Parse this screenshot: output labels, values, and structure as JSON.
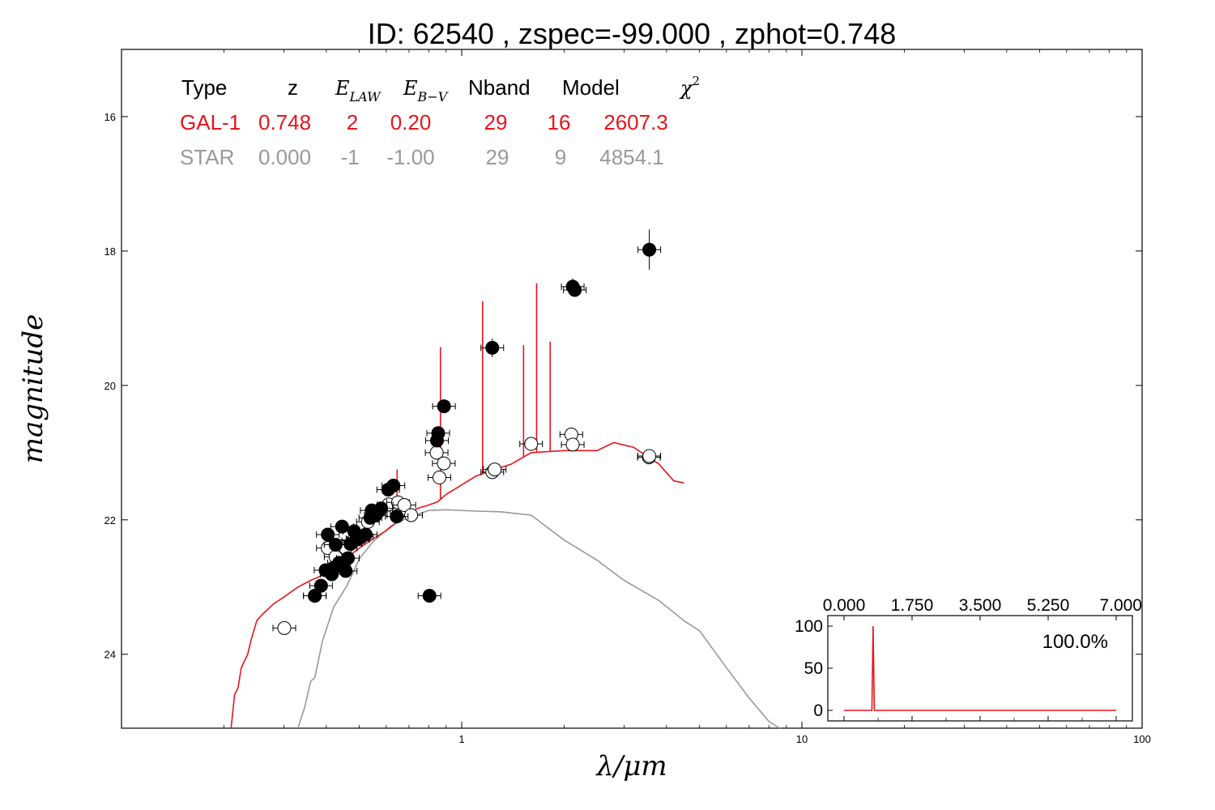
{
  "title": "ID:  62540 , zspec=-99.000 , zphot=0.748",
  "colors": {
    "galaxy": "#e8141c",
    "star": "#999999",
    "point": "#000000"
  },
  "table": {
    "headers": [
      "Type",
      "z",
      "E_LAW",
      "E_B-V",
      "Nband",
      "Model",
      "χ²"
    ],
    "rows": [
      {
        "name": "GAL-1",
        "z": "0.748",
        "elaw": "2",
        "ebv": "0.20",
        "nband": "29",
        "model": "16",
        "chi2": "2607.3",
        "color": "#e8141c"
      },
      {
        "name": "STAR",
        "z": "0.000",
        "elaw": "-1",
        "ebv": "-1.00",
        "nband": "29",
        "model": "9",
        "chi2": "4854.1",
        "color": "#999999"
      }
    ]
  },
  "chart_data": {
    "type": "scatter",
    "xlabel": "λ/μm",
    "ylabel": "magnitude",
    "xscale": "log",
    "xlim": [
      0.1,
      100
    ],
    "ylim": [
      25.1,
      15.0
    ],
    "yinverted": true,
    "xticks": [
      "1",
      "10",
      "100"
    ],
    "yticks": [
      "16",
      "18",
      "20",
      "22",
      "24"
    ],
    "observed_points": [
      [
        0.37,
        23.13
      ],
      [
        0.386,
        22.98
      ],
      [
        0.398,
        22.75
      ],
      [
        0.404,
        22.22
      ],
      [
        0.415,
        22.81
      ],
      [
        0.422,
        22.71
      ],
      [
        0.426,
        22.37
      ],
      [
        0.436,
        22.64
      ],
      [
        0.445,
        22.1
      ],
      [
        0.456,
        22.76
      ],
      [
        0.463,
        22.57
      ],
      [
        0.471,
        22.36
      ],
      [
        0.483,
        22.17
      ],
      [
        0.494,
        22.28
      ],
      [
        0.509,
        22.25
      ],
      [
        0.522,
        22.22
      ],
      [
        0.539,
        21.97
      ],
      [
        0.544,
        21.86
      ],
      [
        0.559,
        21.93
      ],
      [
        0.58,
        21.83
      ],
      [
        0.608,
        21.55
      ],
      [
        0.63,
        21.49
      ],
      [
        0.644,
        21.95
      ],
      [
        0.804,
        23.13
      ],
      [
        0.846,
        20.82
      ],
      [
        0.853,
        20.71
      ],
      [
        0.887,
        20.31
      ],
      [
        1.23,
        19.44
      ],
      [
        2.12,
        18.53
      ],
      [
        2.15,
        18.58
      ],
      [
        3.56,
        17.98
      ]
    ],
    "model_points": [
      [
        0.301,
        23.61
      ],
      [
        0.37,
        23.13
      ],
      [
        0.404,
        22.42
      ],
      [
        0.426,
        22.55
      ],
      [
        0.445,
        22.39
      ],
      [
        0.456,
        22.42
      ],
      [
        0.48,
        22.31
      ],
      [
        0.496,
        22.29
      ],
      [
        0.53,
        22.03
      ],
      [
        0.571,
        21.87
      ],
      [
        0.61,
        21.77
      ],
      [
        0.65,
        21.74
      ],
      [
        0.678,
        21.78
      ],
      [
        0.71,
        21.93
      ],
      [
        0.844,
        21.0
      ],
      [
        0.86,
        21.37
      ],
      [
        0.886,
        21.16
      ],
      [
        1.23,
        21.29
      ],
      [
        1.25,
        21.25
      ],
      [
        1.6,
        20.87
      ],
      [
        2.1,
        20.73
      ],
      [
        2.12,
        20.88
      ],
      [
        3.55,
        21.07
      ],
      [
        3.56,
        21.05
      ]
    ],
    "series": [
      {
        "name": "GAL-1",
        "color": "#e8141c",
        "points": [
          [
            0.21,
            25.1
          ],
          [
            0.215,
            24.6
          ],
          [
            0.22,
            24.5
          ],
          [
            0.225,
            24.2
          ],
          [
            0.235,
            24.0
          ],
          [
            0.24,
            23.8
          ],
          [
            0.25,
            23.5
          ],
          [
            0.26,
            23.4
          ],
          [
            0.28,
            23.25
          ],
          [
            0.3,
            23.15
          ],
          [
            0.33,
            23.0
          ],
          [
            0.36,
            22.9
          ],
          [
            0.4,
            22.8
          ],
          [
            0.45,
            22.6
          ],
          [
            0.5,
            22.42
          ],
          [
            0.55,
            22.28
          ],
          [
            0.6,
            22.16
          ],
          [
            0.65,
            22.02
          ],
          [
            0.7,
            21.9
          ],
          [
            0.75,
            21.82
          ],
          [
            0.8,
            21.78
          ],
          [
            0.85,
            21.73
          ],
          [
            0.9,
            21.62
          ],
          [
            0.95,
            21.55
          ],
          [
            1.0,
            21.48
          ],
          [
            1.1,
            21.35
          ],
          [
            1.2,
            21.28
          ],
          [
            1.4,
            21.17
          ],
          [
            1.6,
            21.0
          ],
          [
            2.0,
            20.97
          ],
          [
            2.5,
            20.97
          ],
          [
            2.8,
            20.85
          ],
          [
            3.2,
            20.92
          ],
          [
            3.5,
            21.05
          ],
          [
            3.8,
            21.17
          ],
          [
            4.0,
            21.3
          ],
          [
            4.2,
            21.42
          ],
          [
            4.5,
            21.45
          ]
        ],
        "lines": [
          [
            0.646,
            21.25
          ],
          [
            0.866,
            19.43
          ],
          [
            1.152,
            18.75
          ],
          [
            1.52,
            19.4
          ],
          [
            1.66,
            18.48
          ],
          [
            1.82,
            19.35
          ]
        ]
      },
      {
        "name": "STAR",
        "color": "#999999",
        "points": [
          [
            0.33,
            25.1
          ],
          [
            0.345,
            24.8
          ],
          [
            0.36,
            24.4
          ],
          [
            0.37,
            24.35
          ],
          [
            0.39,
            23.8
          ],
          [
            0.42,
            23.3
          ],
          [
            0.46,
            22.98
          ],
          [
            0.5,
            22.58
          ],
          [
            0.55,
            22.32
          ],
          [
            0.62,
            22.09
          ],
          [
            0.7,
            21.96
          ],
          [
            0.8,
            21.86
          ],
          [
            0.9,
            21.85
          ],
          [
            1.1,
            21.87
          ],
          [
            1.3,
            21.88
          ],
          [
            1.6,
            21.93
          ],
          [
            2.0,
            22.3
          ],
          [
            2.5,
            22.6
          ],
          [
            3.0,
            22.9
          ],
          [
            3.8,
            23.2
          ],
          [
            4.5,
            23.5
          ],
          [
            5.0,
            23.65
          ],
          [
            6.0,
            24.2
          ],
          [
            7.0,
            24.65
          ],
          [
            8.0,
            25.0
          ],
          [
            8.6,
            25.1
          ]
        ]
      }
    ],
    "inset": {
      "xlim": [
        0,
        7
      ],
      "ylim": [
        0,
        100
      ],
      "xticks": [
        "0.000",
        "1.750",
        "3.500",
        "5.250",
        "7.000"
      ],
      "yticks": [
        "0",
        "50",
        "100"
      ],
      "peak_z": 0.748,
      "peak_value": 100,
      "label": "100.0%"
    }
  }
}
